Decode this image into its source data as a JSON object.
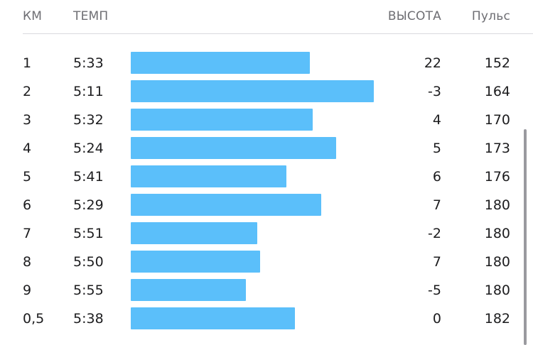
{
  "header": {
    "km": "КМ",
    "pace": "ТЕМП",
    "elevation": "ВЫСОТА",
    "heart_rate": "Пульс"
  },
  "splits": [
    {
      "km": "1",
      "pace": "5:33",
      "elevation": "22",
      "heart_rate": "152"
    },
    {
      "km": "2",
      "pace": "5:11",
      "elevation": "-3",
      "heart_rate": "164"
    },
    {
      "km": "3",
      "pace": "5:32",
      "elevation": "4",
      "heart_rate": "170"
    },
    {
      "km": "4",
      "pace": "5:24",
      "elevation": "5",
      "heart_rate": "173"
    },
    {
      "km": "5",
      "pace": "5:41",
      "elevation": "6",
      "heart_rate": "176"
    },
    {
      "km": "6",
      "pace": "5:29",
      "elevation": "7",
      "heart_rate": "180"
    },
    {
      "km": "7",
      "pace": "5:51",
      "elevation": "-2",
      "heart_rate": "180"
    },
    {
      "km": "8",
      "pace": "5:50",
      "elevation": "7",
      "heart_rate": "180"
    },
    {
      "km": "9",
      "pace": "5:55",
      "elevation": "-5",
      "heart_rate": "180"
    },
    {
      "km": "0,5",
      "pace": "5:38",
      "elevation": "0",
      "heart_rate": "182"
    }
  ],
  "colors": {
    "bar": "#5bbffa",
    "header_text": "#6e6e73",
    "divider": "#d9d9de"
  }
}
